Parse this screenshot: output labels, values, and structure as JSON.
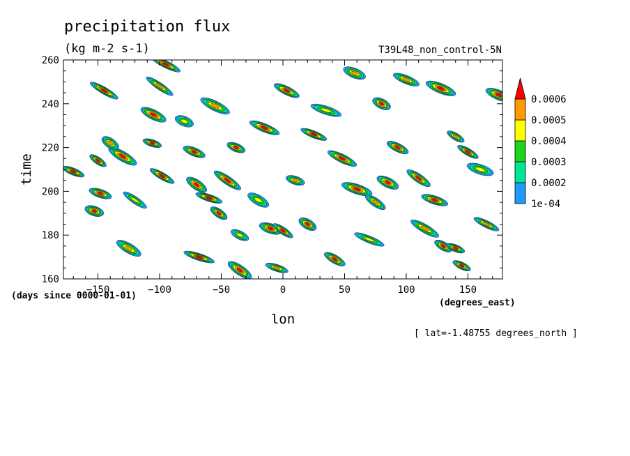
{
  "title": "precipitation flux",
  "units": "(kg m-2 s-1)",
  "run_label": "T39L48_non_control-5N",
  "x_axis_label": "lon",
  "y_axis_label": "time",
  "x_units": "(degrees_east)",
  "y_units": "(days since 0000-01-01)",
  "coordinate_note": "[ lat=-1.48755 degrees_north ]",
  "colorbar": {
    "levels": [
      {
        "label": "1e-04",
        "color": "#1e9bff"
      },
      {
        "label": "0.0002",
        "color": "#00e696"
      },
      {
        "label": "0.0003",
        "color": "#1ed21e"
      },
      {
        "label": "0.0004",
        "color": "#ffff00"
      },
      {
        "label": "0.0005",
        "color": "#ff9b00"
      },
      {
        "label": "0.0006",
        "color": "#ff0000"
      }
    ]
  },
  "chart_data": {
    "type": "heatmap",
    "title": "precipitation flux",
    "subtitle": "(kg m-2 s-1)",
    "xlabel": "lon",
    "ylabel": "time",
    "xlim": [
      -178,
      178
    ],
    "ylim": [
      160,
      260
    ],
    "x_ticks": [
      -150,
      -100,
      -50,
      0,
      50,
      100,
      150
    ],
    "y_ticks": [
      160,
      180,
      200,
      220,
      240,
      260
    ],
    "contour_levels": [
      0.0001,
      0.0002,
      0.0003,
      0.0004,
      0.0005,
      0.0006
    ],
    "blobs": [
      {
        "lon": -106,
        "time": 222,
        "max": 0.0006
      },
      {
        "lon": -72,
        "time": 218,
        "max": 0.0006
      },
      {
        "lon": -105,
        "time": 235,
        "max": 0.0006
      },
      {
        "lon": -145,
        "time": 246,
        "max": 0.0006
      },
      {
        "lon": -52,
        "time": 190,
        "max": 0.0006
      },
      {
        "lon": -10,
        "time": 183,
        "max": 0.0006
      },
      {
        "lon": 25,
        "time": 226,
        "max": 0.0006
      },
      {
        "lon": 48,
        "time": 215,
        "max": 0.0006
      },
      {
        "lon": 20,
        "time": 185,
        "max": 0.0006
      },
      {
        "lon": 0,
        "time": 182,
        "max": 0.0006
      },
      {
        "lon": 123,
        "time": 196,
        "max": 0.0006
      },
      {
        "lon": 128,
        "time": 247,
        "max": 0.0006
      },
      {
        "lon": 145,
        "time": 166,
        "max": 0.0006
      },
      {
        "lon": 42,
        "time": 169,
        "max": 0.0006
      },
      {
        "lon": -35,
        "time": 164,
        "max": 0.0006
      },
      {
        "lon": -68,
        "time": 170,
        "max": 0.0006
      },
      {
        "lon": -38,
        "time": 220,
        "max": 0.0006
      },
      {
        "lon": 85,
        "time": 204,
        "max": 0.0006
      },
      {
        "lon": -98,
        "time": 207,
        "max": 0.0006
      },
      {
        "lon": -45,
        "time": 205,
        "max": 0.0006
      },
      {
        "lon": -153,
        "time": 191,
        "max": 0.0006
      },
      {
        "lon": -170,
        "time": 209,
        "max": 0.0006
      },
      {
        "lon": 3,
        "time": 246,
        "max": 0.0006
      },
      {
        "lon": -130,
        "time": 216,
        "max": 0.0006
      },
      {
        "lon": -150,
        "time": 214,
        "max": 0.0006
      },
      {
        "lon": -148,
        "time": 199,
        "max": 0.0006
      },
      {
        "lon": 175,
        "time": 244,
        "max": 0.0006
      },
      {
        "lon": -95,
        "time": 258,
        "max": 0.0006
      },
      {
        "lon": 130,
        "time": 175,
        "max": 0.0006
      },
      {
        "lon": -70,
        "time": 203,
        "max": 0.0006
      },
      {
        "lon": -60,
        "time": 197,
        "max": 0.0006
      },
      {
        "lon": -15,
        "time": 229,
        "max": 0.0006
      },
      {
        "lon": 80,
        "time": 240,
        "max": 0.0006
      },
      {
        "lon": 150,
        "time": 218,
        "max": 0.0006
      },
      {
        "lon": 110,
        "time": 206,
        "max": 0.0006
      },
      {
        "lon": 60,
        "time": 201,
        "max": 0.0006
      },
      {
        "lon": 140,
        "time": 174,
        "max": 0.0006
      },
      {
        "lon": 93,
        "time": 220,
        "max": 0.0006
      },
      {
        "lon": -125,
        "time": 174,
        "max": 0.0005
      },
      {
        "lon": -100,
        "time": 248,
        "max": 0.0005
      },
      {
        "lon": 10,
        "time": 205,
        "max": 0.0005
      },
      {
        "lon": 58,
        "time": 254,
        "max": 0.0005
      },
      {
        "lon": 165,
        "time": 185,
        "max": 0.0005
      },
      {
        "lon": 115,
        "time": 183,
        "max": 0.0005
      },
      {
        "lon": -140,
        "time": 222,
        "max": 0.0005
      },
      {
        "lon": -5,
        "time": 165,
        "max": 0.0005
      },
      {
        "lon": 100,
        "time": 251,
        "max": 0.0005
      },
      {
        "lon": -55,
        "time": 239,
        "max": 0.0005
      },
      {
        "lon": 140,
        "time": 225,
        "max": 0.0005
      },
      {
        "lon": 75,
        "time": 195,
        "max": 0.0005
      },
      {
        "lon": 160,
        "time": 210,
        "max": 0.0004
      },
      {
        "lon": 70,
        "time": 178,
        "max": 0.0004
      },
      {
        "lon": -35,
        "time": 180,
        "max": 0.0004
      },
      {
        "lon": -20,
        "time": 196,
        "max": 0.0004
      },
      {
        "lon": -120,
        "time": 196,
        "max": 0.0004
      },
      {
        "lon": 35,
        "time": 237,
        "max": 0.0004
      },
      {
        "lon": -80,
        "time": 232,
        "max": 0.0004
      }
    ]
  }
}
